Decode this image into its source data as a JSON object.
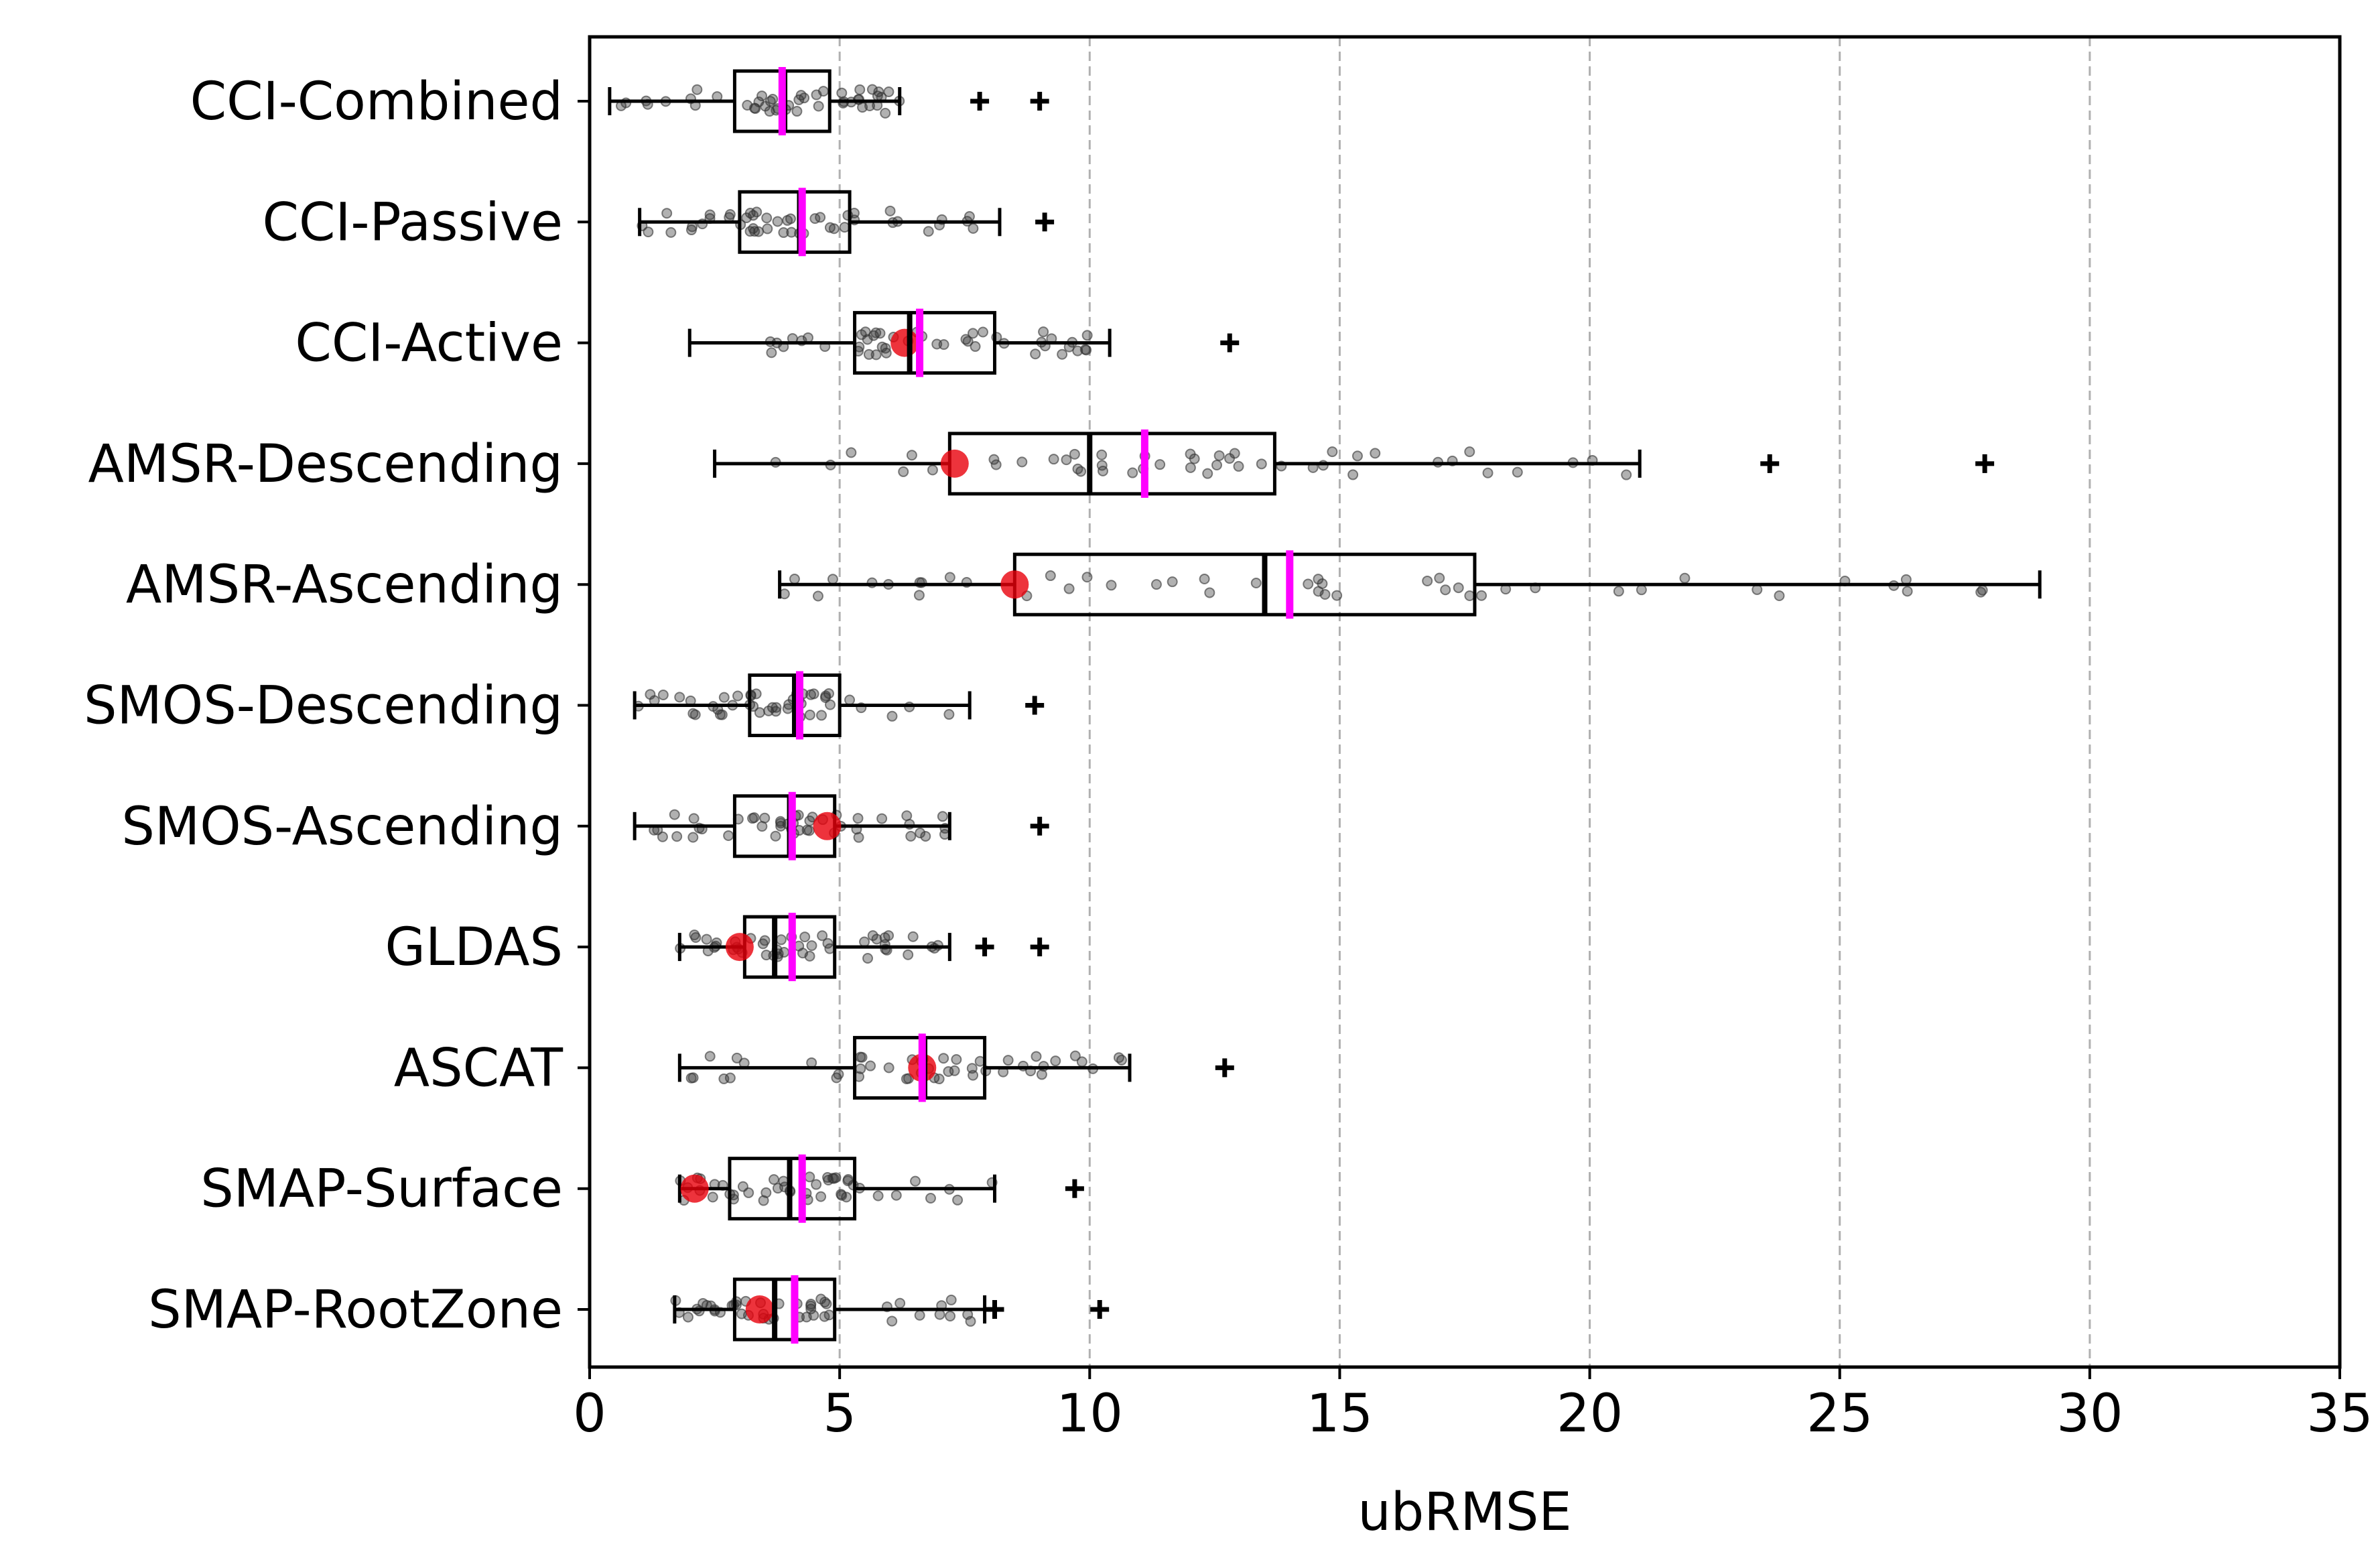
{
  "chart_data": {
    "type": "boxplot",
    "orientation": "horizontal",
    "title": "",
    "xlabel": "ubRMSE",
    "ylabel": "",
    "xlim": [
      0,
      35
    ],
    "xticks": [
      0,
      5,
      10,
      15,
      20,
      25,
      30,
      35
    ],
    "grid": "vertical dashed",
    "colors": {
      "box": "#000000",
      "median": "#000000",
      "mean": "#ff00ff",
      "reference_point": "#e8000b",
      "points": "#333333",
      "grid": "#b0b0b0"
    },
    "categories": [
      "CCI-Combined",
      "CCI-Passive",
      "CCI-Active",
      "AMSR-Descending",
      "AMSR-Ascending",
      "SMOS-Descending",
      "SMOS-Ascending",
      "GLDAS",
      "ASCAT",
      "SMAP-Surface",
      "SMAP-RootZone"
    ],
    "series": [
      {
        "name": "CCI-Combined",
        "whisker_low": 0.4,
        "q1": 2.9,
        "median": 3.9,
        "q3": 4.8,
        "whisker_high": 6.2,
        "mean": 3.85,
        "outliers": [
          7.8,
          9.0
        ],
        "reference": null
      },
      {
        "name": "CCI-Passive",
        "whisker_low": 1.0,
        "q1": 3.0,
        "median": 4.2,
        "q3": 5.2,
        "whisker_high": 8.2,
        "mean": 4.25,
        "outliers": [
          9.1
        ],
        "reference": null
      },
      {
        "name": "CCI-Active",
        "whisker_low": 2.0,
        "q1": 5.3,
        "median": 6.4,
        "q3": 8.1,
        "whisker_high": 10.4,
        "mean": 6.6,
        "outliers": [
          12.8
        ],
        "reference": 6.3
      },
      {
        "name": "AMSR-Descending",
        "whisker_low": 2.5,
        "q1": 7.2,
        "median": 10.0,
        "q3": 13.7,
        "whisker_high": 21.0,
        "mean": 11.1,
        "outliers": [
          23.6,
          27.9
        ],
        "reference": 7.3
      },
      {
        "name": "AMSR-Ascending",
        "whisker_low": 3.8,
        "q1": 8.5,
        "median": 13.5,
        "q3": 17.7,
        "whisker_high": 29.0,
        "mean": 14.0,
        "outliers": [],
        "reference": 8.5
      },
      {
        "name": "SMOS-Descending",
        "whisker_low": 0.9,
        "q1": 3.2,
        "median": 4.1,
        "q3": 5.0,
        "whisker_high": 7.6,
        "mean": 4.2,
        "outliers": [
          8.9
        ],
        "reference": null
      },
      {
        "name": "SMOS-Ascending",
        "whisker_low": 0.9,
        "q1": 2.9,
        "median": 4.0,
        "q3": 4.9,
        "whisker_high": 7.2,
        "mean": 4.05,
        "outliers": [
          9.0
        ],
        "reference": 4.75
      },
      {
        "name": "GLDAS",
        "whisker_low": 1.8,
        "q1": 3.1,
        "median": 3.7,
        "q3": 4.9,
        "whisker_high": 7.2,
        "mean": 4.05,
        "outliers": [
          7.9,
          9.0
        ],
        "reference": 3.0
      },
      {
        "name": "ASCAT",
        "whisker_low": 1.8,
        "q1": 5.3,
        "median": 6.7,
        "q3": 7.9,
        "whisker_high": 10.8,
        "mean": 6.65,
        "outliers": [
          12.7
        ],
        "reference": 6.65
      },
      {
        "name": "SMAP-Surface",
        "whisker_low": 1.8,
        "q1": 2.8,
        "median": 4.0,
        "q3": 5.3,
        "whisker_high": 8.1,
        "mean": 4.25,
        "outliers": [
          9.7
        ],
        "reference": 2.1
      },
      {
        "name": "SMAP-RootZone",
        "whisker_low": 1.7,
        "q1": 2.9,
        "median": 3.7,
        "q3": 4.9,
        "whisker_high": 7.9,
        "mean": 4.1,
        "outliers": [
          8.1,
          10.2
        ],
        "reference": 3.4
      }
    ]
  }
}
